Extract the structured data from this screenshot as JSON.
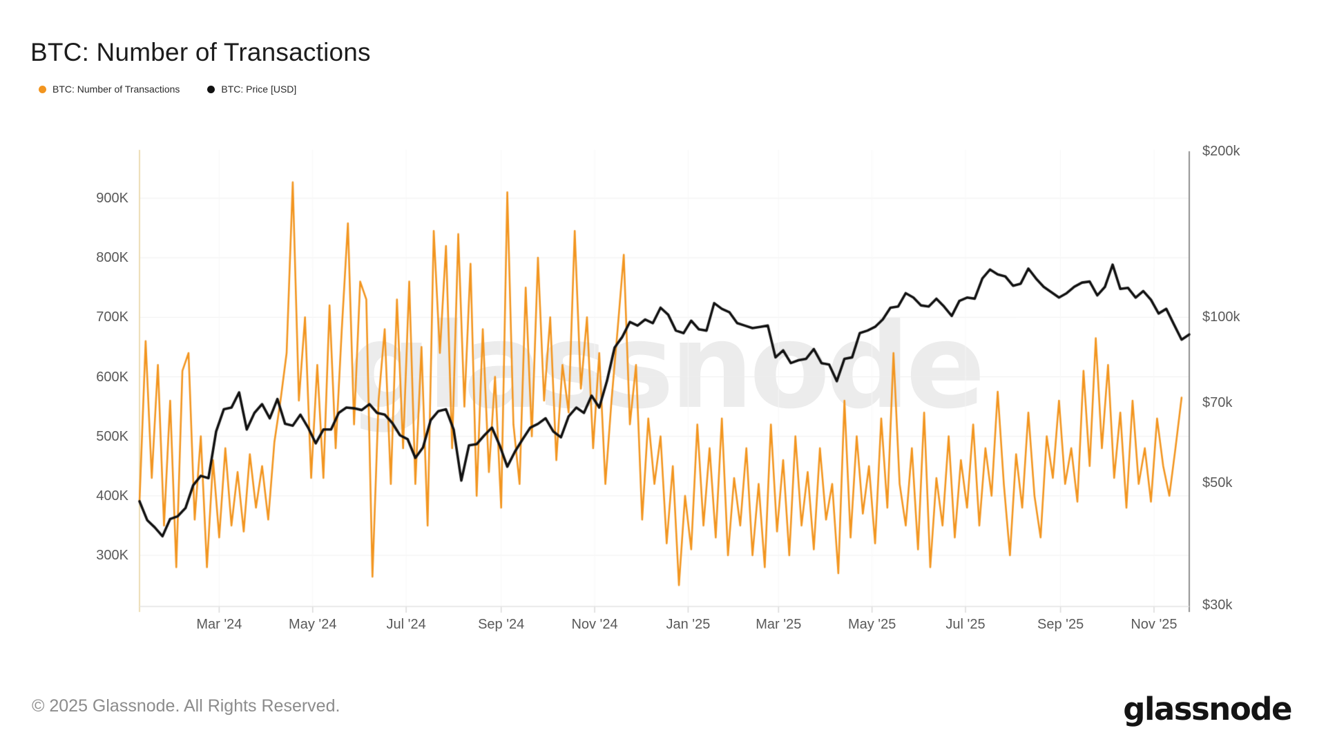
{
  "header": {
    "title": "BTC: Number of Transactions"
  },
  "legend": {
    "items": [
      {
        "label": "BTC: Number of Transactions",
        "color": "#f2951f"
      },
      {
        "label": "BTC: Price [USD]",
        "color": "#111111"
      }
    ]
  },
  "watermark": {
    "text": "glassnode"
  },
  "footer": {
    "copyright": "© 2025 Glassnode. All Rights Reserved.",
    "brand": "glassnode"
  },
  "chart_data": {
    "type": "line",
    "title": "BTC: Number of Transactions",
    "grid": "horizontal light gray + faint vertical at month ticks",
    "legend_position": "top-left",
    "x_range": {
      "start": "2024-01-09",
      "end": "2025-11-24"
    },
    "x_ticks": [
      {
        "label": "Mar '24",
        "date": "2024-03-01"
      },
      {
        "label": "May '24",
        "date": "2024-05-01"
      },
      {
        "label": "Jul '24",
        "date": "2024-07-01"
      },
      {
        "label": "Sep '24",
        "date": "2024-09-01"
      },
      {
        "label": "Nov '24",
        "date": "2024-11-01"
      },
      {
        "label": "Jan '25",
        "date": "2025-01-01"
      },
      {
        "label": "Mar '25",
        "date": "2025-03-01"
      },
      {
        "label": "May '25",
        "date": "2025-05-01"
      },
      {
        "label": "Jul '25",
        "date": "2025-07-01"
      },
      {
        "label": "Sep '25",
        "date": "2025-09-01"
      },
      {
        "label": "Nov '25",
        "date": "2025-11-01"
      }
    ],
    "left_axis": {
      "scale": "linear",
      "unit": "thousand transactions",
      "axis_color": "#ecdcb2",
      "ticks": [
        {
          "label": "900K",
          "value": 900
        },
        {
          "label": "800K",
          "value": 800
        },
        {
          "label": "700K",
          "value": 700
        },
        {
          "label": "600K",
          "value": 600
        },
        {
          "label": "500K",
          "value": 500
        },
        {
          "label": "400K",
          "value": 400
        },
        {
          "label": "300K",
          "value": 300
        }
      ]
    },
    "right_axis": {
      "scale": "log",
      "unit": "thousand USD",
      "axis_color": "#8f8f8f",
      "ticks": [
        {
          "label": "$200k",
          "value": 200
        },
        {
          "label": "$100k",
          "value": 100
        },
        {
          "label": "$70k",
          "value": 70
        },
        {
          "label": "$50k",
          "value": 50
        },
        {
          "label": "$30k",
          "value": 30
        }
      ]
    },
    "series": [
      {
        "name": "BTC: Number of Transactions",
        "axis": "left",
        "color": "#f2951f",
        "line_width": 2.6,
        "value_unit": "thousand transactions per day",
        "start_date": "2024-01-09",
        "step_days": 4,
        "values": [
          390,
          660,
          430,
          620,
          350,
          560,
          280,
          610,
          640,
          360,
          500,
          280,
          460,
          330,
          480,
          350,
          440,
          340,
          470,
          380,
          450,
          360,
          490,
          560,
          640,
          927,
          560,
          700,
          430,
          620,
          430,
          720,
          480,
          680,
          858,
          520,
          760,
          730,
          264,
          560,
          680,
          420,
          730,
          480,
          760,
          420,
          650,
          350,
          845,
          640,
          820,
          480,
          840,
          550,
          790,
          400,
          680,
          440,
          600,
          380,
          910,
          520,
          420,
          750,
          500,
          800,
          560,
          700,
          460,
          620,
          540,
          845,
          580,
          700,
          480,
          640,
          420,
          560,
          680,
          805,
          520,
          620,
          360,
          530,
          420,
          500,
          320,
          450,
          250,
          400,
          310,
          520,
          350,
          480,
          330,
          530,
          300,
          430,
          350,
          480,
          300,
          420,
          280,
          520,
          340,
          460,
          300,
          500,
          350,
          440,
          310,
          480,
          360,
          420,
          270,
          560,
          330,
          500,
          370,
          450,
          320,
          530,
          380,
          640,
          420,
          350,
          480,
          310,
          540,
          280,
          430,
          350,
          500,
          330,
          460,
          380,
          520,
          350,
          480,
          400,
          575,
          420,
          300,
          470,
          380,
          540,
          400,
          330,
          500,
          430,
          560,
          420,
          480,
          390,
          610,
          450,
          665,
          480,
          620,
          430,
          540,
          380,
          560,
          420,
          480,
          390,
          530,
          450,
          400,
          480,
          565
        ]
      },
      {
        "name": "BTC: Price [USD]",
        "axis": "right",
        "color": "#111111",
        "line_width": 3.6,
        "value_unit": "thousand USD",
        "start_date": "2024-01-09",
        "step_days": 5,
        "values": [
          46.3,
          42.8,
          41.5,
          40.0,
          43.0,
          43.5,
          45.0,
          49.5,
          51.5,
          51.0,
          62.0,
          68.0,
          68.5,
          73.0,
          62.5,
          67.0,
          69.5,
          65.5,
          71.0,
          64.0,
          63.5,
          66.5,
          63.0,
          59.0,
          62.5,
          62.5,
          67.0,
          68.5,
          68.3,
          67.8,
          69.5,
          67.0,
          66.5,
          64.2,
          61.0,
          60.0,
          55.5,
          58.0,
          65.0,
          67.5,
          68.0,
          62.5,
          50.5,
          58.5,
          58.8,
          61.0,
          63.0,
          58.5,
          53.5,
          57.0,
          60.0,
          63.0,
          64.0,
          65.5,
          62.0,
          60.5,
          66.0,
          68.5,
          67.0,
          72.0,
          68.5,
          76.5,
          88.0,
          92.0,
          98.0,
          96.5,
          99.0,
          97.5,
          104.0,
          101.0,
          94.5,
          93.5,
          98.5,
          95.0,
          94.5,
          106.0,
          103.5,
          102.0,
          97.5,
          96.5,
          95.5,
          96.0,
          96.5,
          84.5,
          87.0,
          82.5,
          83.5,
          84.0,
          87.5,
          82.5,
          82.0,
          76.5,
          84.0,
          84.5,
          93.5,
          94.5,
          96.0,
          99.0,
          104.0,
          104.5,
          110.5,
          108.5,
          105.0,
          104.5,
          108.0,
          104.5,
          100.5,
          107.0,
          108.5,
          108.0,
          117.5,
          122.0,
          119.5,
          118.5,
          114.0,
          115.0,
          122.5,
          117.5,
          113.5,
          111.0,
          108.5,
          110.5,
          113.5,
          115.5,
          116.0,
          109.5,
          113.5,
          124.5,
          112.5,
          113.0,
          108.5,
          111.5,
          107.5,
          101.5,
          103.5,
          97.0,
          91.0,
          93.0
        ]
      }
    ]
  }
}
